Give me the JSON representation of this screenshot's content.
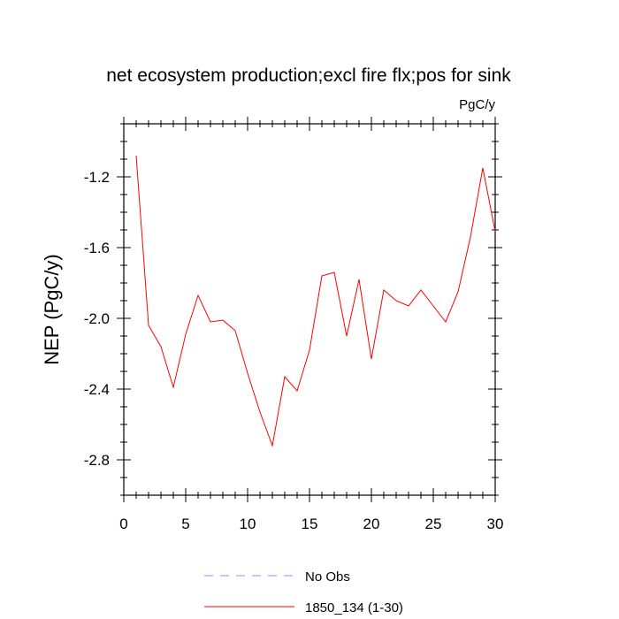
{
  "chart_data": {
    "type": "line",
    "title": "net ecosystem production;excl fire flx;pos for sink",
    "units_label": "PgC/y",
    "ylabel": "NEP  (PgC/y)",
    "xlabel": "",
    "xlim": [
      0,
      30
    ],
    "ylim": [
      -3.0,
      -0.9
    ],
    "x_ticks": [
      0,
      5,
      10,
      15,
      20,
      25,
      30
    ],
    "y_ticks": [
      -2.8,
      -2.4,
      -2.0,
      -1.6,
      -1.2
    ],
    "grid": false,
    "legend_position": "bottom-center",
    "series": [
      {
        "name": "1850_134 (1-30)",
        "color": "#ff0000",
        "style": "solid",
        "x": [
          1,
          2,
          3,
          4,
          5,
          6,
          7,
          8,
          9,
          10,
          11,
          12,
          13,
          14,
          15,
          16,
          17,
          18,
          19,
          20,
          21,
          22,
          23,
          24,
          25,
          26,
          27,
          28,
          29,
          30
        ],
        "y": [
          -1.08,
          -2.04,
          -2.16,
          -2.39,
          -2.09,
          -1.87,
          -2.02,
          -2.01,
          -2.07,
          -2.31,
          -2.53,
          -2.72,
          -2.33,
          -2.41,
          -2.18,
          -1.76,
          -1.74,
          -2.1,
          -1.78,
          -2.23,
          -1.84,
          -1.9,
          -1.93,
          -1.84,
          -1.93,
          -2.02,
          -1.85,
          -1.54,
          -1.15,
          -1.51
        ]
      },
      {
        "name": "No Obs",
        "color": "#8c8cff",
        "style": "dashed",
        "x": [],
        "y": []
      }
    ]
  }
}
